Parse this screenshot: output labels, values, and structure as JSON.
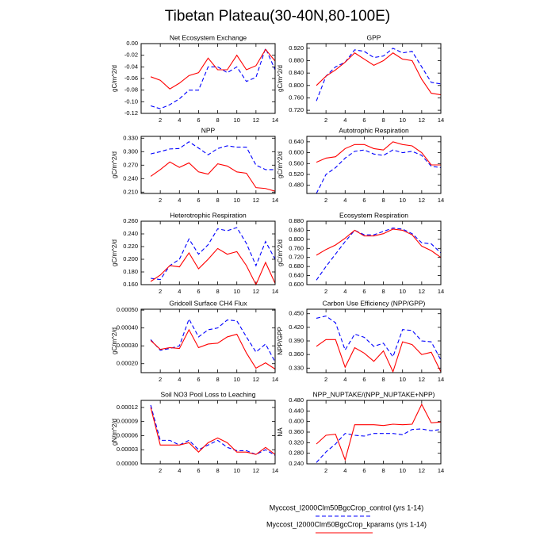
{
  "title": "Tibetan Plateau(30-40N,80-100E)",
  "chart_data": [
    {
      "type": "line",
      "title": "Net Ecosystem Exchange",
      "ylabel": "gC/m^2/d",
      "x": [
        1,
        2,
        3,
        4,
        5,
        6,
        7,
        8,
        9,
        10,
        11,
        12,
        13,
        14
      ],
      "series": [
        {
          "name": "Myccost_I2000Clm50BgcCrop_control (yrs 1-14)",
          "color": "#0000ff",
          "dash": true,
          "values": [
            -0.107,
            -0.112,
            -0.105,
            -0.095,
            -0.08,
            -0.08,
            -0.04,
            -0.04,
            -0.05,
            -0.04,
            -0.065,
            -0.058,
            -0.008,
            -0.045
          ]
        },
        {
          "name": "Myccost_I2000Clm50BgcCrop_kparams (yrs 1-14)",
          "color": "#ff0000",
          "dash": false,
          "values": [
            -0.057,
            -0.063,
            -0.078,
            -0.068,
            -0.055,
            -0.05,
            -0.025,
            -0.045,
            -0.045,
            -0.02,
            -0.045,
            -0.038,
            -0.01,
            -0.03
          ]
        }
      ],
      "xlim": [
        0,
        14
      ],
      "xticks": [
        2,
        4,
        6,
        8,
        10,
        12,
        14
      ],
      "ylim": [
        -0.12,
        0
      ],
      "yticks": [
        {
          "value": 0,
          "label": "0.00"
        },
        -0.02,
        -0.04,
        -0.06,
        -0.08,
        {
          "value": -0.1,
          "label": "-0.10"
        },
        -0.12
      ]
    },
    {
      "type": "line",
      "title": "GPP",
      "ylabel": "gC/m^2/d",
      "x": [
        1,
        2,
        3,
        4,
        5,
        6,
        7,
        8,
        9,
        10,
        11,
        12,
        13,
        14
      ],
      "series": [
        {
          "color": "#0000ff",
          "dash": true,
          "values": [
            0.75,
            0.83,
            0.86,
            0.875,
            0.915,
            0.91,
            0.89,
            0.895,
            0.92,
            0.905,
            0.91,
            0.86,
            0.81,
            0.805
          ]
        },
        {
          "color": "#ff0000",
          "dash": false,
          "values": [
            0.8,
            0.83,
            0.85,
            0.875,
            0.905,
            0.885,
            0.865,
            0.88,
            0.905,
            0.885,
            0.88,
            0.82,
            0.775,
            0.77
          ]
        }
      ],
      "xlim": [
        0,
        14
      ],
      "xticks": [
        2,
        4,
        6,
        8,
        10,
        12,
        14
      ],
      "ylim": [
        0.71,
        0.935
      ],
      "yticks": [
        {
          "value": 0.72,
          "label": "0.720"
        },
        {
          "value": 0.76,
          "label": "0.760"
        },
        {
          "value": 0.8,
          "label": "0.800"
        },
        {
          "value": 0.84,
          "label": "0.840"
        },
        {
          "value": 0.88,
          "label": "0.880"
        },
        {
          "value": 0.92,
          "label": "0.920"
        }
      ]
    },
    {
      "type": "line",
      "title": "NPP",
      "ylabel": "gC/m^2/d",
      "x": [
        1,
        2,
        3,
        4,
        5,
        6,
        7,
        8,
        9,
        10,
        11,
        12,
        13,
        14
      ],
      "series": [
        {
          "color": "#0000ff",
          "dash": true,
          "values": [
            0.295,
            0.3,
            0.306,
            0.307,
            0.322,
            0.308,
            0.293,
            0.307,
            0.313,
            0.31,
            0.31,
            0.27,
            0.26,
            0.26
          ]
        },
        {
          "color": "#ff0000",
          "dash": false,
          "values": [
            0.245,
            0.26,
            0.277,
            0.265,
            0.275,
            0.255,
            0.25,
            0.273,
            0.268,
            0.255,
            0.252,
            0.22,
            0.218,
            0.212
          ]
        }
      ],
      "xlim": [
        0,
        14
      ],
      "xticks": [
        2,
        4,
        6,
        8,
        10,
        12,
        14
      ],
      "ylim": [
        0.207,
        0.334
      ],
      "yticks": [
        {
          "value": 0.21,
          "label": "0.210"
        },
        {
          "value": 0.24,
          "label": "0.240"
        },
        {
          "value": 0.27,
          "label": "0.270"
        },
        {
          "value": 0.3,
          "label": "0.300"
        },
        {
          "value": 0.33,
          "label": "0.330"
        }
      ]
    },
    {
      "type": "line",
      "title": "Autotrophic Respiration",
      "ylabel": "gC/m^2/d",
      "x": [
        1,
        2,
        3,
        4,
        5,
        6,
        7,
        8,
        9,
        10,
        11,
        12,
        13,
        14
      ],
      "series": [
        {
          "color": "#0000ff",
          "dash": true,
          "values": [
            0.45,
            0.52,
            0.545,
            0.58,
            0.605,
            0.61,
            0.595,
            0.59,
            0.61,
            0.6,
            0.605,
            0.59,
            0.55,
            0.545
          ]
        },
        {
          "color": "#ff0000",
          "dash": false,
          "values": [
            0.565,
            0.58,
            0.585,
            0.615,
            0.63,
            0.63,
            0.615,
            0.61,
            0.64,
            0.63,
            0.625,
            0.6,
            0.555,
            0.555
          ]
        }
      ],
      "xlim": [
        0,
        14
      ],
      "xticks": [
        2,
        4,
        6,
        8,
        10,
        12,
        14
      ],
      "ylim": [
        0.45,
        0.66
      ],
      "yticks": [
        {
          "value": 0.48,
          "label": "0.480"
        },
        {
          "value": 0.52,
          "label": "0.520"
        },
        {
          "value": 0.56,
          "label": "0.560"
        },
        {
          "value": 0.6,
          "label": "0.600"
        },
        {
          "value": 0.64,
          "label": "0.640"
        }
      ]
    },
    {
      "type": "line",
      "title": "Heterotrophic Respiration",
      "ylabel": "gC/m^2/d",
      "x": [
        1,
        2,
        3,
        4,
        5,
        6,
        7,
        8,
        9,
        10,
        11,
        12,
        13,
        14
      ],
      "series": [
        {
          "color": "#0000ff",
          "dash": true,
          "values": [
            0.17,
            0.168,
            0.19,
            0.2,
            0.232,
            0.208,
            0.223,
            0.248,
            0.245,
            0.25,
            0.225,
            0.19,
            0.228,
            0.2
          ]
        },
        {
          "color": "#ff0000",
          "dash": false,
          "values": [
            0.165,
            0.175,
            0.19,
            0.188,
            0.21,
            0.185,
            0.2,
            0.217,
            0.208,
            0.212,
            0.19,
            0.16,
            0.195,
            0.162
          ]
        }
      ],
      "xlim": [
        0,
        14
      ],
      "xticks": [
        2,
        4,
        6,
        8,
        10,
        12,
        14
      ],
      "ylim": [
        0.16,
        0.26
      ],
      "yticks": [
        {
          "value": 0.16,
          "label": "0.160"
        },
        {
          "value": 0.18,
          "label": "0.180"
        },
        {
          "value": 0.2,
          "label": "0.200"
        },
        {
          "value": 0.22,
          "label": "0.220"
        },
        {
          "value": 0.24,
          "label": "0.240"
        },
        {
          "value": 0.26,
          "label": "0.260"
        }
      ]
    },
    {
      "type": "line",
      "title": "Ecosystem Respiration",
      "ylabel": "gC/m^2/d",
      "x": [
        1,
        2,
        3,
        4,
        5,
        6,
        7,
        8,
        9,
        10,
        11,
        12,
        13,
        14
      ],
      "series": [
        {
          "color": "#0000ff",
          "dash": true,
          "values": [
            0.62,
            0.68,
            0.735,
            0.79,
            0.84,
            0.82,
            0.82,
            0.835,
            0.85,
            0.845,
            0.825,
            0.785,
            0.78,
            0.74
          ]
        },
        {
          "color": "#ff0000",
          "dash": false,
          "values": [
            0.73,
            0.755,
            0.775,
            0.805,
            0.84,
            0.815,
            0.815,
            0.825,
            0.845,
            0.84,
            0.82,
            0.77,
            0.75,
            0.72
          ]
        }
      ],
      "xlim": [
        0,
        14
      ],
      "xticks": [
        2,
        4,
        6,
        8,
        10,
        12,
        14
      ],
      "ylim": [
        0.6,
        0.88
      ],
      "yticks": [
        {
          "value": 0.6,
          "label": "0.600"
        },
        {
          "value": 0.64,
          "label": "0.640"
        },
        {
          "value": 0.68,
          "label": "0.680"
        },
        {
          "value": 0.72,
          "label": "0.720"
        },
        {
          "value": 0.76,
          "label": "0.760"
        },
        {
          "value": 0.8,
          "label": "0.800"
        },
        {
          "value": 0.84,
          "label": "0.840"
        },
        {
          "value": 0.88,
          "label": "0.880"
        }
      ]
    },
    {
      "type": "line",
      "title": "Gridcell Surface CH4 Flux",
      "ylabel": "gC/m^2/d",
      "x": [
        1,
        2,
        3,
        4,
        5,
        6,
        7,
        8,
        9,
        10,
        11,
        12,
        13,
        14
      ],
      "series": [
        {
          "color": "#0000ff",
          "dash": true,
          "values": [
            0.000335,
            0.000275,
            0.000285,
            0.0003,
            0.00045,
            0.00035,
            0.00039,
            0.0004,
            0.000445,
            0.00044,
            0.00035,
            0.000265,
            0.00031,
            0.00021
          ]
        },
        {
          "color": "#ff0000",
          "dash": false,
          "values": [
            0.00033,
            0.00028,
            0.00029,
            0.000285,
            0.00039,
            0.00029,
            0.00031,
            0.000315,
            0.00035,
            0.000365,
            0.00026,
            0.000175,
            0.000205,
            0.00017
          ]
        }
      ],
      "xlim": [
        0,
        14
      ],
      "xticks": [
        2,
        4,
        6,
        8,
        10,
        12,
        14
      ],
      "ylim": [
        0.00015,
        0.000505
      ],
      "yticks": [
        {
          "value": 0.0002,
          "label": "0.00020"
        },
        {
          "value": 0.0003,
          "label": "0.00030"
        },
        {
          "value": 0.0004,
          "label": "0.00040"
        },
        {
          "value": 0.0005,
          "label": "0.00050"
        }
      ]
    },
    {
      "type": "line",
      "title": "Carbon Use Efficiency (NPP/GPP)",
      "ylabel": "NPP/GPP",
      "x": [
        1,
        2,
        3,
        4,
        5,
        6,
        7,
        8,
        9,
        10,
        11,
        12,
        13,
        14
      ],
      "series": [
        {
          "color": "#0000ff",
          "dash": true,
          "values": [
            0.44,
            0.445,
            0.43,
            0.37,
            0.405,
            0.398,
            0.378,
            0.385,
            0.355,
            0.415,
            0.413,
            0.39,
            0.388,
            0.348
          ]
        },
        {
          "color": "#ff0000",
          "dash": false,
          "values": [
            0.378,
            0.393,
            0.393,
            0.332,
            0.375,
            0.363,
            0.345,
            0.368,
            0.322,
            0.388,
            0.382,
            0.36,
            0.365,
            0.322
          ]
        }
      ],
      "xlim": [
        0,
        14
      ],
      "xticks": [
        2,
        4,
        6,
        8,
        10,
        12,
        14
      ],
      "ylim": [
        0.32,
        0.46
      ],
      "yticks": [
        {
          "value": 0.33,
          "label": "0.330"
        },
        {
          "value": 0.36,
          "label": "0.360"
        },
        {
          "value": 0.39,
          "label": "0.390"
        },
        {
          "value": 0.42,
          "label": "0.420"
        },
        {
          "value": 0.45,
          "label": "0.450"
        }
      ]
    },
    {
      "type": "line",
      "title": "Soil NO3 Pool Loss to Leaching",
      "ylabel": "gN/m^2/d",
      "x": [
        1,
        2,
        3,
        4,
        5,
        6,
        7,
        8,
        9,
        10,
        11,
        12,
        13,
        14
      ],
      "series": [
        {
          "color": "#0000ff",
          "dash": true,
          "values": [
            0.000125,
            5e-05,
            5e-05,
            4e-05,
            5e-05,
            3e-05,
            4e-05,
            5e-05,
            3.5e-05,
            2.8e-05,
            2.8e-05,
            2e-05,
            3e-05,
            1.8e-05
          ]
        },
        {
          "color": "#ff0000",
          "dash": false,
          "values": [
            0.00012,
            4e-05,
            4e-05,
            4e-05,
            4.5e-05,
            2.5e-05,
            4.5e-05,
            5.5e-05,
            4.5e-05,
            2.5e-05,
            2.5e-05,
            2e-05,
            3.5e-05,
            2e-05
          ]
        }
      ],
      "xlim": [
        0,
        14
      ],
      "xticks": [
        2,
        4,
        6,
        8,
        10,
        12,
        14
      ],
      "ylim": [
        0,
        0.000135
      ],
      "yticks": [
        {
          "value": 0,
          "label": "0.00000"
        },
        3e-05,
        6e-05,
        9e-05,
        0.00012
      ]
    },
    {
      "type": "line",
      "title": "NPP_NUPTAKE/(NPP_NUPTAKE+NPP)",
      "ylabel": "NA",
      "x": [
        1,
        2,
        3,
        4,
        5,
        6,
        7,
        8,
        9,
        10,
        11,
        12,
        13,
        14
      ],
      "series": [
        {
          "color": "#0000ff",
          "dash": true,
          "values": [
            0.245,
            0.285,
            0.315,
            0.355,
            0.348,
            0.345,
            0.355,
            0.355,
            0.355,
            0.35,
            0.37,
            0.372,
            0.365,
            0.37
          ]
        },
        {
          "color": "#ff0000",
          "dash": false,
          "values": [
            0.315,
            0.348,
            0.352,
            0.255,
            0.388,
            0.388,
            0.388,
            0.385,
            0.39,
            0.388,
            0.39,
            0.465,
            0.395,
            0.398
          ]
        }
      ],
      "xlim": [
        0,
        14
      ],
      "xticks": [
        2,
        4,
        6,
        8,
        10,
        12,
        14
      ],
      "ylim": [
        0.24,
        0.48
      ],
      "yticks": [
        {
          "value": 0.24,
          "label": "0.240"
        },
        {
          "value": 0.28,
          "label": "0.280"
        },
        {
          "value": 0.32,
          "label": "0.320"
        },
        {
          "value": 0.36,
          "label": "0.360"
        },
        {
          "value": 0.4,
          "label": "0.400"
        },
        {
          "value": 0.44,
          "label": "0.440"
        },
        {
          "value": 0.48,
          "label": "0.480"
        }
      ]
    }
  ]
}
